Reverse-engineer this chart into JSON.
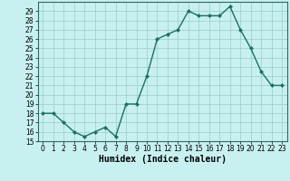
{
  "x": [
    0,
    1,
    2,
    3,
    4,
    5,
    6,
    7,
    8,
    9,
    10,
    11,
    12,
    13,
    14,
    15,
    16,
    17,
    18,
    19,
    20,
    21,
    22,
    23
  ],
  "y": [
    18,
    18,
    17,
    16,
    15.5,
    16,
    16.5,
    15.5,
    19,
    19,
    22,
    26,
    26.5,
    27,
    29,
    28.5,
    28.5,
    28.5,
    29.5,
    27,
    25,
    22.5,
    21,
    21
  ],
  "line_color": "#1a7060",
  "marker": "D",
  "marker_size": 2.0,
  "bg_color": "#c8f0f0",
  "grid_color": "#99cccc",
  "xlabel": "Humidex (Indice chaleur)",
  "xlim": [
    -0.5,
    23.5
  ],
  "ylim": [
    15,
    30
  ],
  "yticks": [
    15,
    16,
    17,
    18,
    19,
    20,
    21,
    22,
    23,
    24,
    25,
    26,
    27,
    28,
    29
  ],
  "xticks": [
    0,
    1,
    2,
    3,
    4,
    5,
    6,
    7,
    8,
    9,
    10,
    11,
    12,
    13,
    14,
    15,
    16,
    17,
    18,
    19,
    20,
    21,
    22,
    23
  ],
  "tick_fontsize": 5.5,
  "xlabel_fontsize": 7.0,
  "linewidth": 1.0
}
